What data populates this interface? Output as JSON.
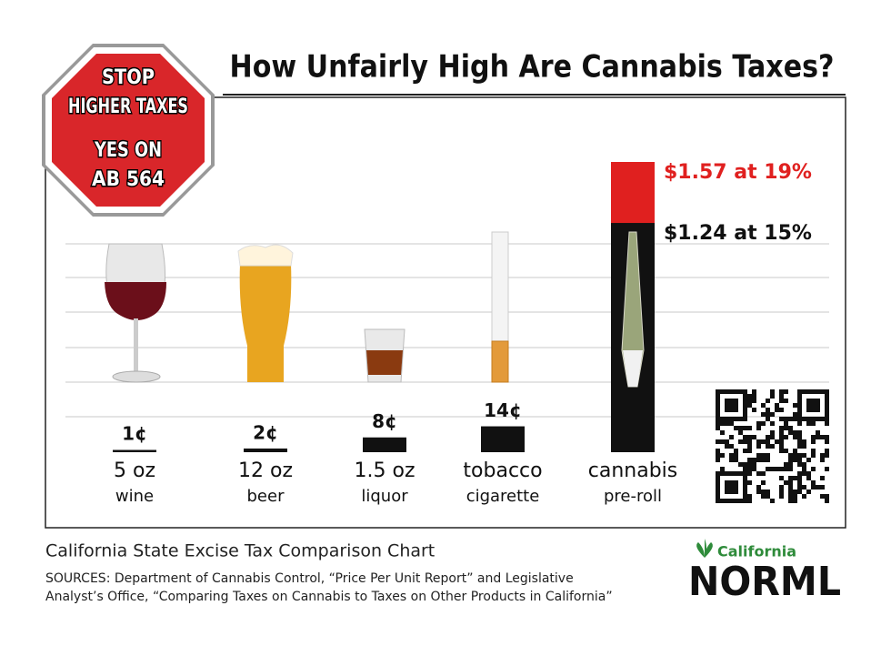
{
  "chart_data": {
    "type": "bar",
    "title": "How Unfairly High Are Cannabis Taxes?",
    "badge": [
      "STOP",
      "HIGHER TAXES",
      "YES ON",
      "AB 564"
    ],
    "categories": [
      "5 oz",
      "12 oz",
      "1.5 oz",
      "tobacco",
      "cannabis"
    ],
    "sublabels": [
      "wine",
      "beer",
      "liquor",
      "cigarette",
      "pre-roll"
    ],
    "series": [
      {
        "color": "#111111",
        "values": [
          0.01,
          0.02,
          0.08,
          0.14,
          1.24
        ],
        "value_labels": [
          "1¢",
          "2¢",
          "8¢",
          "14¢",
          "$1.24 at 15%"
        ],
        "label_color": "#111111"
      },
      {
        "color": "#e0201f",
        "values": [
          null,
          null,
          null,
          null,
          1.57
        ],
        "value_labels": [
          null,
          null,
          null,
          null,
          "$1.57 at 19%"
        ],
        "label_color": "#e0201f"
      }
    ],
    "caption": "California State Excise Tax Comparison Chart",
    "sources": [
      "SOURCES: Department of Cannabis Control, “Price Per Unit Report” and Legislative",
      "Analyst’s Office, “Comparing Taxes on Cannabis to Taxes on Other Products in California”"
    ],
    "logo": [
      "California",
      "NORML"
    ]
  }
}
